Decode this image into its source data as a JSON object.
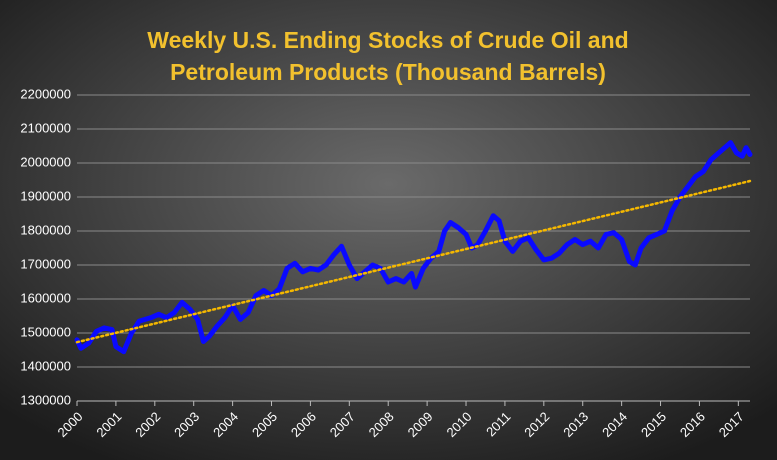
{
  "chart_data": {
    "type": "line",
    "title": [
      "Weekly U.S. Ending Stocks of Crude Oil and",
      "Petroleum Products  (Thousand  Barrels)"
    ],
    "series": [
      {
        "color": "#0a0aff",
        "x": [
          2000.0,
          2000.1,
          2000.3,
          2000.5,
          2000.7,
          2000.9,
          2001.0,
          2001.2,
          2001.4,
          2001.6,
          2001.9,
          2002.1,
          2002.3,
          2002.5,
          2002.7,
          2002.9,
          2003.1,
          2003.25,
          2003.4,
          2003.6,
          2003.8,
          2004.0,
          2004.2,
          2004.4,
          2004.6,
          2004.8,
          2005.0,
          2005.2,
          2005.4,
          2005.6,
          2005.8,
          2006.0,
          2006.2,
          2006.4,
          2006.6,
          2006.8,
          2007.0,
          2007.2,
          2007.4,
          2007.6,
          2007.8,
          2008.0,
          2008.2,
          2008.4,
          2008.6,
          2008.7,
          2008.9,
          2009.1,
          2009.3,
          2009.45,
          2009.6,
          2009.8,
          2010.0,
          2010.15,
          2010.3,
          2010.5,
          2010.7,
          2010.85,
          2011.0,
          2011.2,
          2011.4,
          2011.6,
          2011.8,
          2012.0,
          2012.2,
          2012.4,
          2012.6,
          2012.8,
          2013.0,
          2013.2,
          2013.4,
          2013.6,
          2013.8,
          2014.0,
          2014.2,
          2014.35,
          2014.5,
          2014.7,
          2014.9,
          2015.1,
          2015.3,
          2015.5,
          2015.7,
          2015.9,
          2016.1,
          2016.3,
          2016.5,
          2016.65,
          2016.8,
          2016.95,
          2017.1,
          2017.2,
          2017.3
        ],
        "values": [
          1480000,
          1455000,
          1470000,
          1505000,
          1515000,
          1510000,
          1460000,
          1445000,
          1500000,
          1535000,
          1545000,
          1555000,
          1545000,
          1560000,
          1590000,
          1570000,
          1540000,
          1475000,
          1490000,
          1520000,
          1545000,
          1580000,
          1540000,
          1560000,
          1610000,
          1625000,
          1610000,
          1630000,
          1690000,
          1705000,
          1680000,
          1690000,
          1685000,
          1700000,
          1730000,
          1755000,
          1700000,
          1660000,
          1680000,
          1700000,
          1690000,
          1650000,
          1660000,
          1650000,
          1675000,
          1635000,
          1690000,
          1720000,
          1740000,
          1800000,
          1825000,
          1810000,
          1790000,
          1750000,
          1760000,
          1800000,
          1845000,
          1830000,
          1770000,
          1740000,
          1770000,
          1780000,
          1745000,
          1715000,
          1720000,
          1735000,
          1760000,
          1775000,
          1760000,
          1770000,
          1750000,
          1790000,
          1795000,
          1775000,
          1710000,
          1700000,
          1750000,
          1780000,
          1790000,
          1800000,
          1860000,
          1900000,
          1930000,
          1960000,
          1975000,
          2010000,
          2030000,
          2045000,
          2060000,
          2030000,
          2020000,
          2045000,
          2025000
        ]
      },
      {
        "color": "#f5b800",
        "dotted": true,
        "x": [
          2000.0,
          2017.3
        ],
        "values": [
          1473000,
          1947000
        ]
      }
    ],
    "xlim": [
      2000,
      2017.3
    ],
    "xticks": [
      2000,
      2001,
      2002,
      2003,
      2004,
      2005,
      2006,
      2007,
      2008,
      2009,
      2010,
      2011,
      2012,
      2013,
      2014,
      2015,
      2016,
      2017
    ],
    "ylim": [
      1300000,
      2200000
    ],
    "yticks": [
      1300000,
      1400000,
      1500000,
      1600000,
      1700000,
      1800000,
      1900000,
      2000000,
      2100000,
      2200000
    ],
    "grid": true
  }
}
